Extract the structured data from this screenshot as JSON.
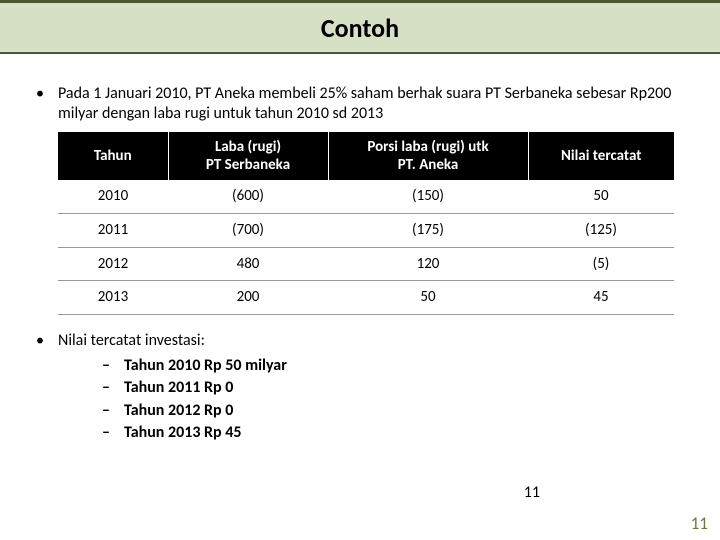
{
  "title": "Contoh",
  "bullet1_text": "Pada 1 Januari 2010, PT Aneka membeli 25% saham berhak suara PT Serbaneka sebesar Rp200 milyar dengan laba rugi untuk tahun 2010 sd 2013",
  "table": {
    "columns": [
      "Tahun",
      "Laba (rugi)\nPT Serbaneka",
      "Porsi laba (rugi) utk\nPT. Aneka",
      "Nilai tercatat"
    ],
    "col_widths": [
      "110px",
      "160px",
      "200px",
      "146px"
    ],
    "rows": [
      [
        "2010",
        "(600)",
        "(150)",
        "50"
      ],
      [
        "2011",
        "(700)",
        "(175)",
        "(125)"
      ],
      [
        "2012",
        "480",
        "120",
        "(5)"
      ],
      [
        "2013",
        "200",
        "50",
        "45"
      ]
    ],
    "header_bg": "#000000",
    "header_fg": "#ffffff",
    "border_color": "#999999"
  },
  "bullet2_text": "Nilai tercatat investasi:",
  "sub_items": [
    "Tahun 2010 Rp 50 milyar",
    "Tahun 2011  Rp 0",
    "Tahun 2012  Rp 0",
    "Tahun 2013  Rp 45"
  ],
  "page_center": "11",
  "page_corner": "11",
  "colors": {
    "header_band": "#d6e0c4",
    "header_border": "#4a5730",
    "corner_text": "#6b7a3a"
  }
}
